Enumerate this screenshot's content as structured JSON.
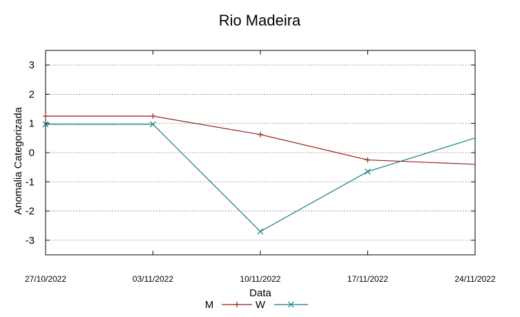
{
  "chart_data": {
    "type": "line",
    "title": "Rio Madeira",
    "xlabel": "Data",
    "ylabel": "Anomalia Categorizada",
    "x": [
      "27/10/2022",
      "03/11/2022",
      "10/11/2022",
      "17/11/2022",
      "24/11/2022"
    ],
    "ylim": [
      -3.5,
      3.5
    ],
    "yticks": [
      -3,
      -2,
      -1,
      0,
      1,
      2,
      3
    ],
    "grid": "horizontal-dashed",
    "legend_position": "bottom-center",
    "series": [
      {
        "name": "M",
        "color": "#9b1c1c",
        "marker": "plus",
        "values": [
          1.25,
          1.25,
          0.62,
          -0.25,
          -0.4
        ]
      },
      {
        "name": "W",
        "color": "#127a84",
        "marker": "cross",
        "values": [
          0.97,
          0.97,
          -2.7,
          -0.65,
          0.5
        ]
      }
    ]
  }
}
